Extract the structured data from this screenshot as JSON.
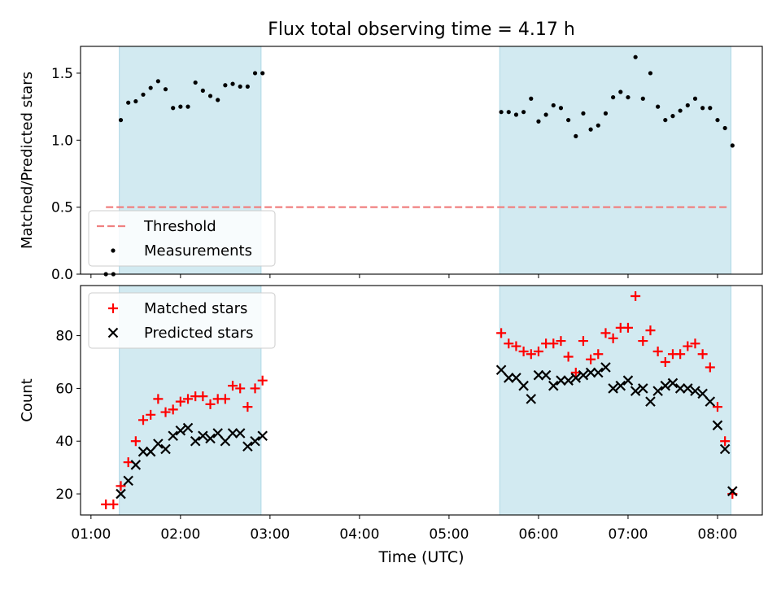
{
  "chart_data": {
    "title": "Flux total observing time = 4.17 h",
    "xlabel": "Time (UTC)",
    "x_ticks": [
      "01:00",
      "02:00",
      "03:00",
      "04:00",
      "05:00",
      "06:00",
      "07:00",
      "08:00"
    ],
    "xlim": [
      "00:53",
      "08:30"
    ],
    "observing_windows": [
      [
        "01:19",
        "02:54"
      ],
      [
        "05:34",
        "08:09"
      ]
    ],
    "shade_color": "#add8e6",
    "panels": [
      {
        "type": "scatter",
        "ylabel": "Matched/Predicted stars",
        "ylim": [
          0,
          1.7
        ],
        "y_ticks": [
          "0.0",
          "0.5",
          "1.0",
          "1.5"
        ],
        "threshold": {
          "name": "Threshold",
          "value": 0.5,
          "x_range": [
            "01:10",
            "08:08"
          ],
          "color": "#f08080"
        },
        "legend": {
          "loc": "lower left",
          "entries": [
            "Threshold",
            "Measurements"
          ]
        },
        "series": [
          {
            "name": "Measurements",
            "color": "#000000",
            "points": [
              [
                "01:10",
                0.0
              ],
              [
                "01:15",
                0.0
              ],
              [
                "01:20",
                1.15
              ],
              [
                "01:25",
                1.28
              ],
              [
                "01:30",
                1.29
              ],
              [
                "01:35",
                1.34
              ],
              [
                "01:40",
                1.39
              ],
              [
                "01:45",
                1.44
              ],
              [
                "01:50",
                1.38
              ],
              [
                "01:55",
                1.24
              ],
              [
                "02:00",
                1.25
              ],
              [
                "02:05",
                1.25
              ],
              [
                "02:10",
                1.43
              ],
              [
                "02:15",
                1.37
              ],
              [
                "02:20",
                1.33
              ],
              [
                "02:25",
                1.3
              ],
              [
                "02:30",
                1.41
              ],
              [
                "02:35",
                1.42
              ],
              [
                "02:40",
                1.4
              ],
              [
                "02:45",
                1.4
              ],
              [
                "02:50",
                1.5
              ],
              [
                "02:55",
                1.5
              ],
              [
                "05:35",
                1.21
              ],
              [
                "05:40",
                1.21
              ],
              [
                "05:45",
                1.19
              ],
              [
                "05:50",
                1.21
              ],
              [
                "05:55",
                1.31
              ],
              [
                "06:00",
                1.14
              ],
              [
                "06:05",
                1.19
              ],
              [
                "06:10",
                1.26
              ],
              [
                "06:15",
                1.24
              ],
              [
                "06:20",
                1.15
              ],
              [
                "06:25",
                1.03
              ],
              [
                "06:30",
                1.2
              ],
              [
                "06:35",
                1.08
              ],
              [
                "06:40",
                1.11
              ],
              [
                "06:45",
                1.2
              ],
              [
                "06:50",
                1.32
              ],
              [
                "06:55",
                1.36
              ],
              [
                "07:00",
                1.32
              ],
              [
                "07:05",
                1.62
              ],
              [
                "07:10",
                1.31
              ],
              [
                "07:15",
                1.5
              ],
              [
                "07:20",
                1.25
              ],
              [
                "07:25",
                1.15
              ],
              [
                "07:30",
                1.18
              ],
              [
                "07:35",
                1.22
              ],
              [
                "07:40",
                1.26
              ],
              [
                "07:45",
                1.31
              ],
              [
                "07:50",
                1.24
              ],
              [
                "07:55",
                1.24
              ],
              [
                "08:00",
                1.15
              ],
              [
                "08:05",
                1.09
              ],
              [
                "08:10",
                0.96
              ]
            ]
          }
        ]
      },
      {
        "type": "scatter",
        "ylabel": "Count",
        "ylim": [
          12,
          99
        ],
        "y_ticks": [
          "20",
          "40",
          "60",
          "80"
        ],
        "legend": {
          "loc": "upper left",
          "entries": [
            "Matched stars",
            "Predicted stars"
          ]
        },
        "series": [
          {
            "name": "Matched stars",
            "marker": "+",
            "color": "#ff0000",
            "points": [
              [
                "01:10",
                16
              ],
              [
                "01:15",
                16
              ],
              [
                "01:20",
                23
              ],
              [
                "01:25",
                32
              ],
              [
                "01:30",
                40
              ],
              [
                "01:35",
                48
              ],
              [
                "01:40",
                50
              ],
              [
                "01:45",
                56
              ],
              [
                "01:50",
                51
              ],
              [
                "01:55",
                52
              ],
              [
                "02:00",
                55
              ],
              [
                "02:05",
                56
              ],
              [
                "02:10",
                57
              ],
              [
                "02:15",
                57
              ],
              [
                "02:20",
                54
              ],
              [
                "02:25",
                56
              ],
              [
                "02:30",
                56
              ],
              [
                "02:35",
                61
              ],
              [
                "02:40",
                60
              ],
              [
                "02:45",
                53
              ],
              [
                "02:50",
                60
              ],
              [
                "02:55",
                63
              ],
              [
                "05:35",
                81
              ],
              [
                "05:40",
                77
              ],
              [
                "05:45",
                76
              ],
              [
                "05:50",
                74
              ],
              [
                "05:55",
                73
              ],
              [
                "06:00",
                74
              ],
              [
                "06:05",
                77
              ],
              [
                "06:10",
                77
              ],
              [
                "06:15",
                78
              ],
              [
                "06:20",
                72
              ],
              [
                "06:25",
                66
              ],
              [
                "06:30",
                78
              ],
              [
                "06:35",
                71
              ],
              [
                "06:40",
                73
              ],
              [
                "06:45",
                81
              ],
              [
                "06:50",
                79
              ],
              [
                "06:55",
                83
              ],
              [
                "07:00",
                83
              ],
              [
                "07:05",
                95
              ],
              [
                "07:10",
                78
              ],
              [
                "07:15",
                82
              ],
              [
                "07:20",
                74
              ],
              [
                "07:25",
                70
              ],
              [
                "07:30",
                73
              ],
              [
                "07:35",
                73
              ],
              [
                "07:40",
                76
              ],
              [
                "07:45",
                77
              ],
              [
                "07:50",
                73
              ],
              [
                "07:55",
                68
              ],
              [
                "08:00",
                53
              ],
              [
                "08:05",
                40
              ],
              [
                "08:10",
                20
              ]
            ]
          },
          {
            "name": "Predicted stars",
            "marker": "x",
            "color": "#000000",
            "points": [
              [
                "01:20",
                20
              ],
              [
                "01:25",
                25
              ],
              [
                "01:30",
                31
              ],
              [
                "01:35",
                36
              ],
              [
                "01:40",
                36
              ],
              [
                "01:45",
                39
              ],
              [
                "01:50",
                37
              ],
              [
                "01:55",
                42
              ],
              [
                "02:00",
                44
              ],
              [
                "02:05",
                45
              ],
              [
                "02:10",
                40
              ],
              [
                "02:15",
                42
              ],
              [
                "02:20",
                41
              ],
              [
                "02:25",
                43
              ],
              [
                "02:30",
                40
              ],
              [
                "02:35",
                43
              ],
              [
                "02:40",
                43
              ],
              [
                "02:45",
                38
              ],
              [
                "02:50",
                40
              ],
              [
                "02:55",
                42
              ],
              [
                "05:35",
                67
              ],
              [
                "05:40",
                64
              ],
              [
                "05:45",
                64
              ],
              [
                "05:50",
                61
              ],
              [
                "05:55",
                56
              ],
              [
                "06:00",
                65
              ],
              [
                "06:05",
                65
              ],
              [
                "06:10",
                61
              ],
              [
                "06:15",
                63
              ],
              [
                "06:20",
                63
              ],
              [
                "06:25",
                64
              ],
              [
                "06:30",
                65
              ],
              [
                "06:35",
                66
              ],
              [
                "06:40",
                66
              ],
              [
                "06:45",
                68
              ],
              [
                "06:50",
                60
              ],
              [
                "06:55",
                61
              ],
              [
                "07:00",
                63
              ],
              [
                "07:05",
                59
              ],
              [
                "07:10",
                60
              ],
              [
                "07:15",
                55
              ],
              [
                "07:20",
                59
              ],
              [
                "07:25",
                61
              ],
              [
                "07:30",
                62
              ],
              [
                "07:35",
                60
              ],
              [
                "07:40",
                60
              ],
              [
                "07:45",
                59
              ],
              [
                "07:50",
                58
              ],
              [
                "07:55",
                55
              ],
              [
                "08:00",
                46
              ],
              [
                "08:05",
                37
              ],
              [
                "08:10",
                21
              ]
            ]
          }
        ]
      }
    ]
  }
}
